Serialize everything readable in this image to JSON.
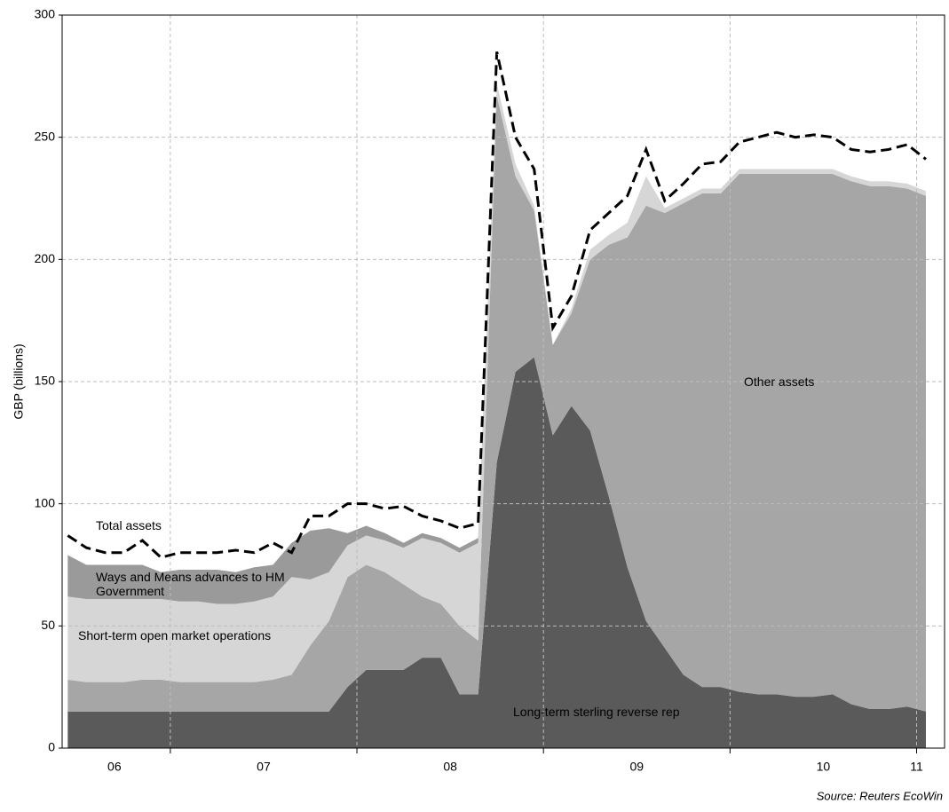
{
  "chart_data": {
    "type": "stacked-area",
    "y_label": "GBP (billions)",
    "source": "Source: Reuters EcoWin",
    "x": [
      6.45,
      6.55,
      6.65,
      6.75,
      6.85,
      6.95,
      7.05,
      7.15,
      7.25,
      7.35,
      7.45,
      7.55,
      7.65,
      7.75,
      7.85,
      7.95,
      8.05,
      8.15,
      8.25,
      8.35,
      8.45,
      8.55,
      8.65,
      8.75,
      8.85,
      8.95,
      9.05,
      9.15,
      9.25,
      9.35,
      9.45,
      9.55,
      9.65,
      9.75,
      9.85,
      9.95,
      10.05,
      10.15,
      10.25,
      10.35,
      10.45,
      10.55,
      10.65,
      10.75,
      10.85,
      10.95,
      11.05
    ],
    "series": [
      {
        "name": "Long-term sterling reverse rep",
        "color": "#5a5a5a",
        "values": [
          15,
          15,
          15,
          15,
          15,
          15,
          15,
          15,
          15,
          15,
          15,
          15,
          15,
          15,
          15,
          25,
          32,
          32,
          32,
          37,
          37,
          22,
          22,
          117,
          154,
          160,
          128,
          140,
          130,
          103,
          74,
          52,
          41,
          30,
          25,
          25,
          23,
          22,
          22,
          21,
          21,
          22,
          18,
          16,
          16,
          17,
          15
        ]
      },
      {
        "name": "Other assets",
        "color": "#a6a6a6",
        "values": [
          13,
          12,
          12,
          12,
          13,
          13,
          12,
          12,
          12,
          12,
          12,
          13,
          15,
          27,
          37,
          45,
          43,
          40,
          35,
          25,
          22,
          28,
          22,
          150,
          80,
          60,
          37,
          38,
          70,
          103,
          135,
          170,
          178,
          193,
          202,
          202,
          212,
          213,
          213,
          214,
          214,
          213,
          214,
          214,
          214,
          212,
          211
        ]
      },
      {
        "name": "Short-term open market operations",
        "color": "#d6d6d6",
        "values": [
          34,
          34,
          34,
          34,
          33,
          33,
          33,
          33,
          32,
          32,
          33,
          34,
          40,
          27,
          20,
          13,
          12,
          13,
          15,
          24,
          25,
          30,
          40,
          5,
          5,
          2,
          0,
          2,
          4,
          4,
          6,
          12,
          2,
          2,
          2,
          2,
          2,
          2,
          2,
          2,
          2,
          2,
          2,
          2,
          2,
          2,
          2
        ]
      },
      {
        "name": "Ways and Means advances to HM Government",
        "color": "#9a9a9a",
        "values": [
          17,
          14,
          14,
          14,
          14,
          11,
          13,
          13,
          14,
          13,
          14,
          13,
          14,
          20,
          18,
          5,
          4,
          3,
          2,
          2,
          2,
          2,
          2,
          0,
          0,
          0,
          0,
          0,
          0,
          0,
          0,
          0,
          0,
          0,
          0,
          0,
          0,
          0,
          0,
          0,
          0,
          0,
          0,
          0,
          0,
          0,
          0
        ]
      }
    ],
    "total": {
      "name": "Total assets",
      "color": "#000000",
      "values": [
        87,
        82,
        80,
        80,
        85,
        78,
        80,
        80,
        80,
        81,
        80,
        84,
        80,
        95,
        95,
        100,
        100,
        98,
        99,
        95,
        93,
        90,
        92,
        285,
        250,
        237,
        172,
        185,
        212,
        219,
        226,
        245,
        224,
        231,
        239,
        240,
        248,
        250,
        252,
        250,
        251,
        250,
        245,
        244,
        245,
        247,
        241
      ]
    },
    "xlim": [
      6.42,
      11.15
    ],
    "xticks": [
      {
        "value": 6.7,
        "label": "06"
      },
      {
        "value": 7.5,
        "label": "07"
      },
      {
        "value": 8.5,
        "label": "08"
      },
      {
        "value": 9.5,
        "label": "09"
      },
      {
        "value": 10.5,
        "label": "10"
      },
      {
        "value": 11.0,
        "label": "11"
      }
    ],
    "xgrid": [
      7,
      8,
      9,
      10,
      11
    ],
    "ylim": [
      0,
      300
    ],
    "yticks": [
      0,
      50,
      100,
      150,
      200,
      250,
      300
    ],
    "grid": true
  }
}
